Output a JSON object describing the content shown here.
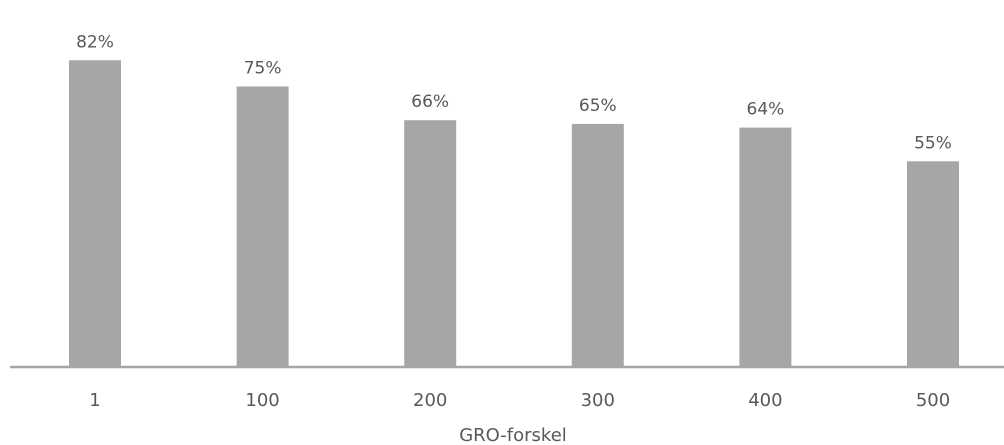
{
  "chart_data": {
    "type": "bar",
    "categories": [
      "1",
      "100",
      "200",
      "300",
      "400",
      "500"
    ],
    "values": [
      82,
      75,
      66,
      65,
      64,
      55
    ],
    "value_labels": [
      "82%",
      "75%",
      "66%",
      "65%",
      "64%",
      "55%"
    ],
    "title": "",
    "xlabel": "GRO-forskel",
    "ylabel": "",
    "ylim": [
      0,
      100
    ],
    "grid": false,
    "legend": "none",
    "bar_color": "#a6a6a6",
    "axis_color": "#a6a6a6",
    "text_color": "#595959"
  }
}
